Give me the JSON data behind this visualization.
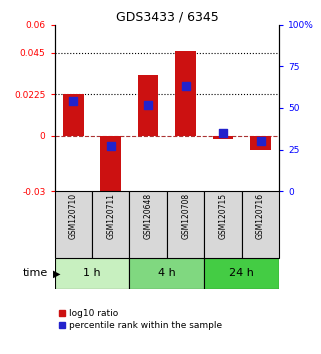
{
  "title": "GDS3433 / 6345",
  "samples": [
    "GSM120710",
    "GSM120711",
    "GSM120648",
    "GSM120708",
    "GSM120715",
    "GSM120716"
  ],
  "log10_ratio": [
    0.0225,
    -0.037,
    0.033,
    0.046,
    -0.002,
    -0.008
  ],
  "percentile_rank": [
    54,
    27,
    52,
    63,
    35,
    30
  ],
  "time_groups": [
    {
      "label": "1 h",
      "indices": [
        0,
        1
      ],
      "color": "#c8f0c0"
    },
    {
      "label": "4 h",
      "indices": [
        2,
        3
      ],
      "color": "#80d880"
    },
    {
      "label": "24 h",
      "indices": [
        4,
        5
      ],
      "color": "#44cc44"
    }
  ],
  "ylim_left": [
    -0.03,
    0.06
  ],
  "ylim_right": [
    0,
    100
  ],
  "yticks_left": [
    -0.03,
    0,
    0.0225,
    0.045,
    0.06
  ],
  "yticks_right": [
    0,
    25,
    50,
    75,
    100
  ],
  "ytick_labels_left": [
    "-0.03",
    "0",
    "0.0225",
    "0.045",
    "0.06"
  ],
  "ytick_labels_right": [
    "0",
    "25",
    "50",
    "75",
    "100%"
  ],
  "hlines": [
    0.0225,
    0.045
  ],
  "bar_color": "#cc1111",
  "dot_color": "#2222cc",
  "bar_width": 0.55,
  "dot_size": 28,
  "legend_items": [
    "log10 ratio",
    "percentile rank within the sample"
  ],
  "legend_colors": [
    "#cc1111",
    "#2222cc"
  ],
  "time_label": "time",
  "sample_bg": "#d8d8d8"
}
